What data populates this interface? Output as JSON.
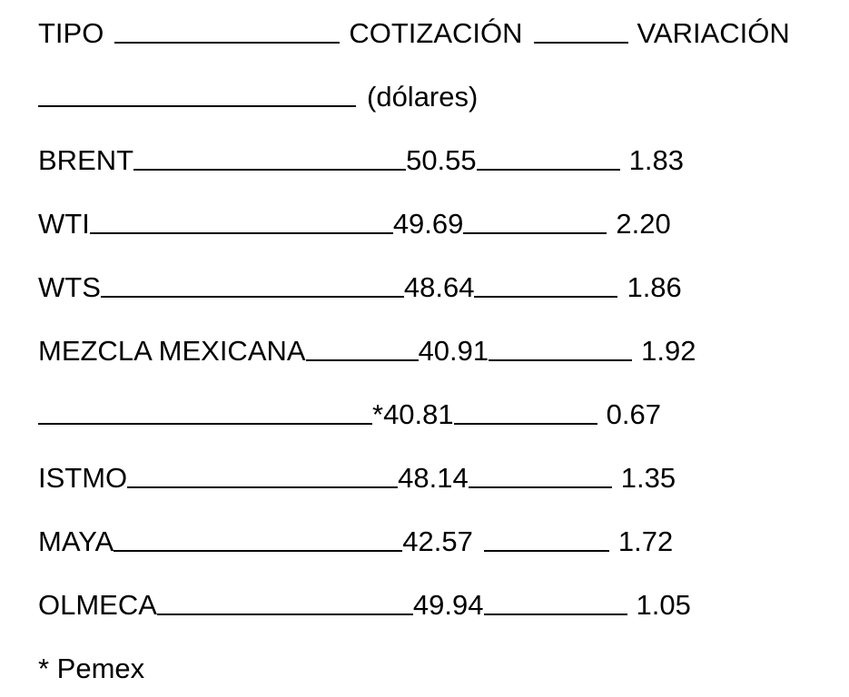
{
  "header": {
    "tipo": "TIPO",
    "cotizacion": "COTIZACIÓN",
    "variacion": "VARIACIÓN",
    "unit": "(dólares)"
  },
  "rows": [
    {
      "tipo": "BRENT",
      "cotizacion": "50.55",
      "variacion": "1.83"
    },
    {
      "tipo": "WTI",
      "cotizacion": "49.69",
      "variacion": "2.20"
    },
    {
      "tipo": "WTS",
      "cotizacion": "48.64",
      "variacion": "1.86"
    },
    {
      "tipo": "MEZCLA MEXICANA",
      "cotizacion": "40.91",
      "variacion": "1.92"
    },
    {
      "tipo": "",
      "cotizacion": "*40.81",
      "variacion": "0.67"
    },
    {
      "tipo": "ISTMO",
      "cotizacion": "48.14",
      "variacion": "1.35"
    },
    {
      "tipo": "MAYA",
      "cotizacion": "42.57",
      "variacion": "1.72"
    },
    {
      "tipo": "OLMECA",
      "cotizacion": "49.94",
      "variacion": "1.05"
    }
  ],
  "footnote": "* Pemex"
}
